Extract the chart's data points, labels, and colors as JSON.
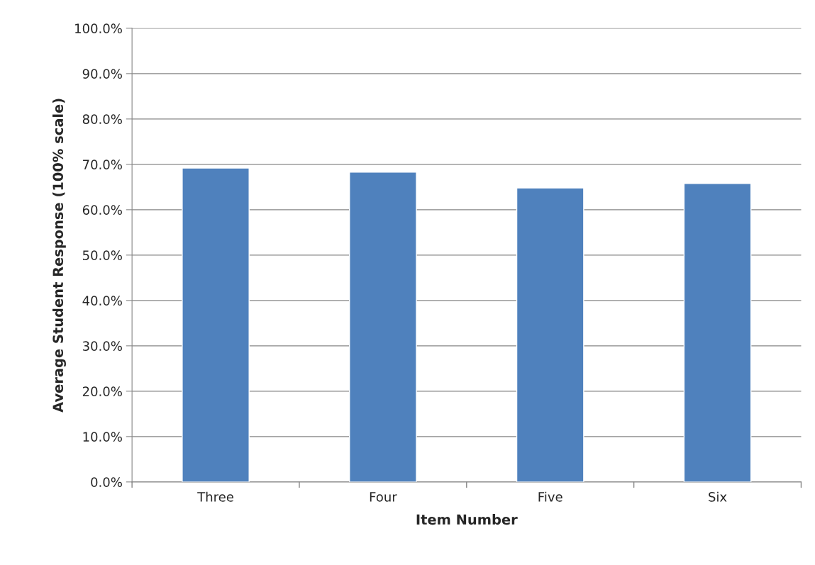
{
  "chart_data": {
    "type": "bar",
    "xlabel": "Item Number",
    "ylabel": "Average Student Response (100% scale)",
    "categories": [
      "Three",
      "Four",
      "Five",
      "Six"
    ],
    "values": [
      69.2,
      68.3,
      64.8,
      65.8
    ],
    "color": "#4f81bd",
    "ylim": [
      0,
      100
    ],
    "yticks": [
      {
        "value": 0,
        "label": "0.0%"
      },
      {
        "value": 10,
        "label": "10.0%"
      },
      {
        "value": 20,
        "label": "20.0%"
      },
      {
        "value": 30,
        "label": "30.0%"
      },
      {
        "value": 40,
        "label": "40.0%"
      },
      {
        "value": 50,
        "label": "50.0%"
      },
      {
        "value": 60,
        "label": "60.0%"
      },
      {
        "value": 70,
        "label": "70.0%"
      },
      {
        "value": 80,
        "label": "80.0%"
      },
      {
        "value": 90,
        "label": "90.0%"
      },
      {
        "value": 100,
        "label": "100.0%"
      }
    ],
    "grid": "y",
    "legend": false
  }
}
